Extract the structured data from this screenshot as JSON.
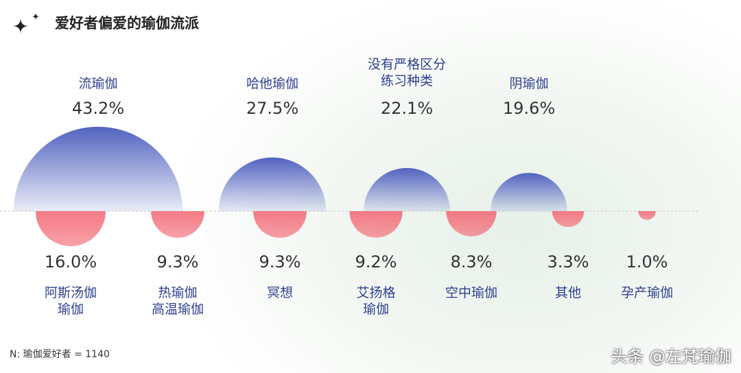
{
  "chart_data": {
    "type": "semicircle",
    "title": "爱好者偏爱的瑜伽流派",
    "note": "N:  瑜伽爱好者 = 1140",
    "watermark": "头条 @左梵瑜伽",
    "series": [
      {
        "name": "上",
        "color": "#5163c0",
        "categories": [
          "流瑜伽",
          "哈他瑜伽",
          "没有严格区分\n练习种类",
          "阴瑜伽"
        ],
        "values": [
          43.2,
          27.5,
          22.1,
          19.6
        ],
        "value_labels": [
          "43.2%",
          "27.5%",
          "22.1%",
          "19.6%"
        ]
      },
      {
        "name": "下",
        "color": "#f2636f",
        "categories": [
          "阿斯汤伽\n瑜伽",
          "热瑜伽\n高温瑜伽",
          "冥想",
          "艾扬格\n瑜伽",
          "空中瑜伽",
          "其他",
          "孕产瑜伽"
        ],
        "values": [
          16.0,
          9.3,
          9.3,
          9.2,
          8.3,
          3.3,
          1.0
        ],
        "value_labels": [
          "16.0%",
          "9.3%",
          "9.3%",
          "9.2%",
          "8.3%",
          "3.3%",
          "1.0%"
        ]
      }
    ]
  }
}
